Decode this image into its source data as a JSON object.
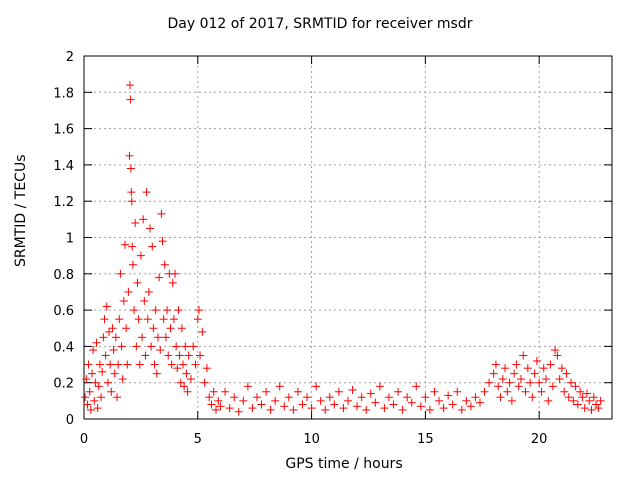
{
  "chart_data": {
    "type": "scatter",
    "title": "Day 012 of 2017, SRMTID for receiver msdr",
    "xlabel": "GPS time / hours",
    "ylabel": "SRMTID / TECUs",
    "xlim": [
      0,
      23.2
    ],
    "ylim": [
      0,
      2
    ],
    "xticks": [
      0,
      5,
      10,
      15,
      20
    ],
    "xtick_labels": [
      "0",
      "5",
      "10",
      "15",
      "20"
    ],
    "yticks": [
      0,
      0.2,
      0.4,
      0.6,
      0.8,
      1,
      1.2,
      1.4,
      1.6,
      1.8,
      2
    ],
    "ytick_labels": [
      "0",
      "0.2",
      "0.4",
      "0.6",
      "0.8",
      "1",
      "1.2",
      "1.4",
      "1.6",
      "1.8",
      "2"
    ],
    "grid": true,
    "marker": "+",
    "series": [
      {
        "name": "SRMTID",
        "color": "#ff0000",
        "points": [
          [
            0.05,
            0.12
          ],
          [
            0.1,
            0.22
          ],
          [
            0.15,
            0.08
          ],
          [
            0.2,
            0.3
          ],
          [
            0.25,
            0.15
          ],
          [
            0.3,
            0.05
          ],
          [
            0.35,
            0.25
          ],
          [
            0.4,
            0.38
          ],
          [
            0.45,
            0.1
          ],
          [
            0.5,
            0.2
          ],
          [
            0.55,
            0.42
          ],
          [
            0.6,
            0.06
          ],
          [
            0.65,
            0.18
          ],
          [
            0.7,
            0.3
          ],
          [
            0.75,
            0.12
          ],
          [
            0.8,
            0.26
          ],
          [
            0.85,
            0.45
          ],
          [
            0.9,
            0.55
          ],
          [
            0.95,
            0.35
          ],
          [
            1.0,
            0.62
          ],
          [
            1.05,
            0.2
          ],
          [
            1.1,
            0.48
          ],
          [
            1.15,
            0.3
          ],
          [
            1.2,
            0.15
          ],
          [
            1.25,
            0.5
          ],
          [
            1.3,
            0.38
          ],
          [
            1.35,
            0.25
          ],
          [
            1.4,
            0.45
          ],
          [
            1.45,
            0.12
          ],
          [
            1.5,
            0.3
          ],
          [
            1.55,
            0.55
          ],
          [
            1.6,
            0.8
          ],
          [
            1.65,
            0.4
          ],
          [
            1.7,
            0.22
          ],
          [
            1.75,
            0.65
          ],
          [
            1.8,
            0.96
          ],
          [
            1.85,
            0.5
          ],
          [
            1.9,
            0.3
          ],
          [
            1.95,
            0.7
          ],
          [
            2.0,
            1.45
          ],
          [
            2.02,
            1.84
          ],
          [
            2.04,
            1.76
          ],
          [
            2.06,
            1.38
          ],
          [
            2.08,
            1.25
          ],
          [
            2.1,
            1.2
          ],
          [
            2.12,
            0.95
          ],
          [
            2.15,
            0.85
          ],
          [
            2.2,
            0.6
          ],
          [
            2.25,
            1.08
          ],
          [
            2.3,
            0.4
          ],
          [
            2.35,
            0.75
          ],
          [
            2.4,
            0.55
          ],
          [
            2.45,
            0.3
          ],
          [
            2.5,
            0.9
          ],
          [
            2.55,
            0.45
          ],
          [
            2.6,
            1.1
          ],
          [
            2.65,
            0.65
          ],
          [
            2.7,
            0.35
          ],
          [
            2.75,
            1.25
          ],
          [
            2.8,
            0.55
          ],
          [
            2.85,
            0.7
          ],
          [
            2.9,
            1.05
          ],
          [
            2.95,
            0.4
          ],
          [
            3.0,
            0.95
          ],
          [
            3.05,
            0.5
          ],
          [
            3.1,
            0.3
          ],
          [
            3.15,
            0.6
          ],
          [
            3.2,
            0.25
          ],
          [
            3.25,
            0.45
          ],
          [
            3.3,
            0.78
          ],
          [
            3.35,
            0.38
          ],
          [
            3.4,
            1.13
          ],
          [
            3.45,
            0.98
          ],
          [
            3.5,
            0.55
          ],
          [
            3.55,
            0.85
          ],
          [
            3.6,
            0.45
          ],
          [
            3.65,
            0.6
          ],
          [
            3.7,
            0.35
          ],
          [
            3.75,
            0.8
          ],
          [
            3.8,
            0.5
          ],
          [
            3.85,
            0.3
          ],
          [
            3.9,
            0.75
          ],
          [
            3.95,
            0.55
          ],
          [
            4.0,
            0.8
          ],
          [
            4.05,
            0.4
          ],
          [
            4.1,
            0.28
          ],
          [
            4.15,
            0.6
          ],
          [
            4.2,
            0.35
          ],
          [
            4.25,
            0.2
          ],
          [
            4.3,
            0.5
          ],
          [
            4.35,
            0.3
          ],
          [
            4.4,
            0.18
          ],
          [
            4.45,
            0.4
          ],
          [
            4.5,
            0.25
          ],
          [
            4.55,
            0.15
          ],
          [
            4.6,
            0.35
          ],
          [
            4.7,
            0.22
          ],
          [
            4.8,
            0.4
          ],
          [
            4.9,
            0.3
          ],
          [
            5.0,
            0.55
          ],
          [
            5.05,
            0.6
          ],
          [
            5.1,
            0.35
          ],
          [
            5.2,
            0.48
          ],
          [
            5.3,
            0.2
          ],
          [
            5.4,
            0.28
          ],
          [
            5.5,
            0.12
          ],
          [
            5.6,
            0.08
          ],
          [
            5.7,
            0.15
          ],
          [
            5.8,
            0.05
          ],
          [
            5.9,
            0.1
          ],
          [
            6.0,
            0.07
          ],
          [
            6.2,
            0.15
          ],
          [
            6.4,
            0.06
          ],
          [
            6.6,
            0.12
          ],
          [
            6.8,
            0.04
          ],
          [
            7.0,
            0.1
          ],
          [
            7.2,
            0.18
          ],
          [
            7.4,
            0.06
          ],
          [
            7.6,
            0.12
          ],
          [
            7.8,
            0.08
          ],
          [
            8.0,
            0.15
          ],
          [
            8.2,
            0.05
          ],
          [
            8.4,
            0.1
          ],
          [
            8.6,
            0.18
          ],
          [
            8.8,
            0.07
          ],
          [
            9.0,
            0.12
          ],
          [
            9.2,
            0.05
          ],
          [
            9.4,
            0.15
          ],
          [
            9.6,
            0.08
          ],
          [
            9.8,
            0.12
          ],
          [
            10.0,
            0.06
          ],
          [
            10.2,
            0.18
          ],
          [
            10.4,
            0.1
          ],
          [
            10.6,
            0.05
          ],
          [
            10.8,
            0.12
          ],
          [
            11.0,
            0.08
          ],
          [
            11.2,
            0.15
          ],
          [
            11.4,
            0.06
          ],
          [
            11.6,
            0.1
          ],
          [
            11.8,
            0.16
          ],
          [
            12.0,
            0.07
          ],
          [
            12.2,
            0.12
          ],
          [
            12.4,
            0.05
          ],
          [
            12.6,
            0.14
          ],
          [
            12.8,
            0.09
          ],
          [
            13.0,
            0.18
          ],
          [
            13.2,
            0.06
          ],
          [
            13.4,
            0.12
          ],
          [
            13.6,
            0.08
          ],
          [
            13.8,
            0.15
          ],
          [
            14.0,
            0.05
          ],
          [
            14.2,
            0.12
          ],
          [
            14.4,
            0.09
          ],
          [
            14.6,
            0.18
          ],
          [
            14.8,
            0.07
          ],
          [
            15.0,
            0.12
          ],
          [
            15.2,
            0.05
          ],
          [
            15.4,
            0.15
          ],
          [
            15.6,
            0.1
          ],
          [
            15.8,
            0.06
          ],
          [
            16.0,
            0.13
          ],
          [
            16.2,
            0.08
          ],
          [
            16.4,
            0.15
          ],
          [
            16.6,
            0.05
          ],
          [
            16.8,
            0.1
          ],
          [
            17.0,
            0.07
          ],
          [
            17.2,
            0.12
          ],
          [
            17.4,
            0.09
          ],
          [
            17.6,
            0.15
          ],
          [
            17.8,
            0.2
          ],
          [
            18.0,
            0.25
          ],
          [
            18.1,
            0.3
          ],
          [
            18.2,
            0.18
          ],
          [
            18.3,
            0.12
          ],
          [
            18.4,
            0.22
          ],
          [
            18.5,
            0.28
          ],
          [
            18.6,
            0.15
          ],
          [
            18.7,
            0.2
          ],
          [
            18.8,
            0.1
          ],
          [
            18.9,
            0.25
          ],
          [
            19.0,
            0.3
          ],
          [
            19.1,
            0.18
          ],
          [
            19.2,
            0.22
          ],
          [
            19.3,
            0.35
          ],
          [
            19.4,
            0.15
          ],
          [
            19.5,
            0.28
          ],
          [
            19.6,
            0.2
          ],
          [
            19.7,
            0.12
          ],
          [
            19.8,
            0.25
          ],
          [
            19.9,
            0.32
          ],
          [
            20.0,
            0.2
          ],
          [
            20.1,
            0.15
          ],
          [
            20.2,
            0.28
          ],
          [
            20.3,
            0.22
          ],
          [
            20.4,
            0.1
          ],
          [
            20.5,
            0.3
          ],
          [
            20.6,
            0.18
          ],
          [
            20.7,
            0.38
          ],
          [
            20.8,
            0.35
          ],
          [
            20.9,
            0.22
          ],
          [
            21.0,
            0.28
          ],
          [
            21.1,
            0.15
          ],
          [
            21.2,
            0.25
          ],
          [
            21.3,
            0.12
          ],
          [
            21.4,
            0.2
          ],
          [
            21.5,
            0.1
          ],
          [
            21.6,
            0.18
          ],
          [
            21.7,
            0.08
          ],
          [
            21.8,
            0.15
          ],
          [
            21.9,
            0.12
          ],
          [
            22.0,
            0.06
          ],
          [
            22.1,
            0.14
          ],
          [
            22.2,
            0.1
          ],
          [
            22.3,
            0.05
          ],
          [
            22.4,
            0.12
          ],
          [
            22.5,
            0.08
          ],
          [
            22.6,
            0.06
          ],
          [
            22.7,
            0.1
          ]
        ]
      }
    ]
  }
}
